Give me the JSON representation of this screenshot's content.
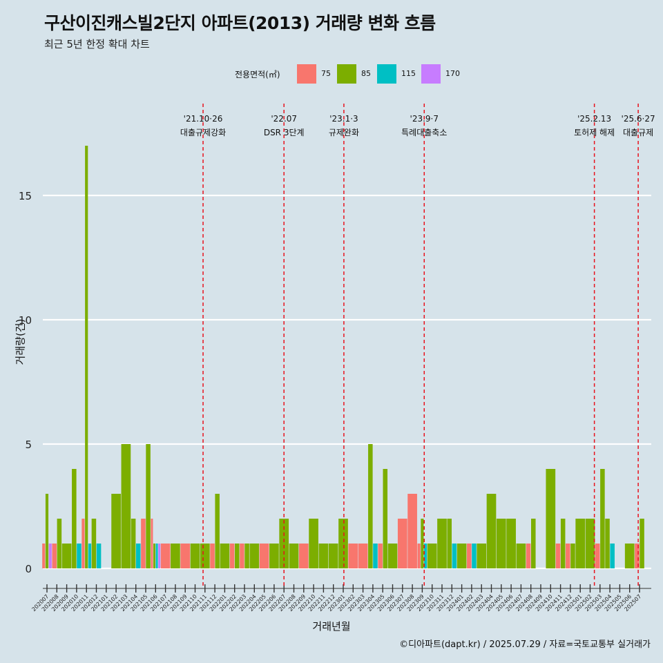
{
  "title": "구산이진캐스빌2단지 아파트(2013) 거래량 변화 흐름",
  "subtitle": "최근 5년 한정 확대 차트",
  "caption": "©디아파트(dapt.kr) / 2025.07.29 / 자료=국토교통부 실거래가",
  "colors": {
    "background": "#d6e3ea",
    "75": "#f8766d",
    "85": "#7cae00",
    "115": "#00bfc4",
    "170": "#c77cff",
    "event_line": "#e8111c"
  },
  "chart_data": {
    "type": "bar",
    "title": "구산이진캐스빌2단지 아파트(2013) 거래량 변화 흐름",
    "xlabel": "거래년월",
    "ylabel": "거래량(건)",
    "ylim": [
      0,
      17
    ],
    "yticks": [
      0,
      5,
      10,
      15
    ],
    "grid": "horizontal",
    "legend_title": "전용면적(㎡)",
    "legend_position": "top",
    "series": [
      {
        "name": "75"
      },
      {
        "name": "85"
      },
      {
        "name": "115"
      },
      {
        "name": "170"
      }
    ],
    "months": [
      "202007",
      "202008",
      "202009",
      "202010",
      "202011",
      "202012",
      "202101",
      "202102",
      "202103",
      "202104",
      "202105",
      "202106",
      "202107",
      "202108",
      "202109",
      "202110",
      "202111",
      "202112",
      "202201",
      "202202",
      "202203",
      "202204",
      "202205",
      "202206",
      "202207",
      "202208",
      "202209",
      "202210",
      "202211",
      "202212",
      "202301",
      "202302",
      "202303",
      "202304",
      "202305",
      "202306",
      "202307",
      "202308",
      "202309",
      "202310",
      "202311",
      "202312",
      "202401",
      "202402",
      "202403",
      "202404",
      "202405",
      "202406",
      "202407",
      "202408",
      "202409",
      "202410",
      "202411",
      "202412",
      "202501",
      "202502",
      "202503",
      "202504",
      "202505",
      "202506",
      "202507"
    ],
    "bars": [
      [
        "202007",
        [
          [
            "85",
            3
          ],
          [
            "170",
            1
          ],
          [
            "75",
            1
          ]
        ]
      ],
      [
        "202008",
        [
          [
            "85",
            2
          ],
          [
            "75",
            1
          ]
        ]
      ],
      [
        "202009",
        [
          [
            "85",
            1
          ]
        ]
      ],
      [
        "202010",
        [
          [
            "85",
            4
          ],
          [
            "115",
            1
          ]
        ]
      ],
      [
        "202011",
        [
          [
            "75",
            2
          ],
          [
            "85",
            17
          ],
          [
            "115",
            1
          ]
        ]
      ],
      [
        "202012",
        [
          [
            "85",
            2
          ],
          [
            "115",
            1
          ]
        ]
      ],
      [
        "202101",
        []
      ],
      [
        "202102",
        [
          [
            "85",
            3
          ]
        ]
      ],
      [
        "202103",
        [
          [
            "85",
            5
          ]
        ]
      ],
      [
        "202104",
        [
          [
            "85",
            2
          ],
          [
            "115",
            1
          ]
        ]
      ],
      [
        "202105",
        [
          [
            "75",
            2
          ],
          [
            "85",
            5
          ]
        ]
      ],
      [
        "202106",
        [
          [
            "75",
            2
          ],
          [
            "85",
            1
          ],
          [
            "115",
            1
          ],
          [
            "170",
            1
          ]
        ]
      ],
      [
        "202107",
        [
          [
            "75",
            1
          ]
        ]
      ],
      [
        "202108",
        [
          [
            "85",
            1
          ]
        ]
      ],
      [
        "202109",
        [
          [
            "75",
            1
          ]
        ]
      ],
      [
        "202110",
        [
          [
            "85",
            1
          ]
        ]
      ],
      [
        "202111",
        [
          [
            "85",
            1
          ]
        ]
      ],
      [
        "202112",
        [
          [
            "75",
            1
          ],
          [
            "85",
            3
          ]
        ]
      ],
      [
        "202201",
        [
          [
            "85",
            1
          ]
        ]
      ],
      [
        "202202",
        [
          [
            "75",
            1
          ],
          [
            "85",
            1
          ]
        ]
      ],
      [
        "202203",
        [
          [
            "75",
            1
          ],
          [
            "85",
            1
          ]
        ]
      ],
      [
        "202204",
        [
          [
            "85",
            1
          ]
        ]
      ],
      [
        "202205",
        [
          [
            "75",
            1
          ]
        ]
      ],
      [
        "202206",
        [
          [
            "85",
            1
          ]
        ]
      ],
      [
        "202207",
        [
          [
            "85",
            2
          ]
        ]
      ],
      [
        "202208",
        [
          [
            "85",
            1
          ]
        ]
      ],
      [
        "202209",
        [
          [
            "75",
            1
          ]
        ]
      ],
      [
        "202210",
        [
          [
            "85",
            2
          ]
        ]
      ],
      [
        "202211",
        [
          [
            "85",
            1
          ]
        ]
      ],
      [
        "202212",
        [
          [
            "85",
            1
          ]
        ]
      ],
      [
        "202301",
        [
          [
            "85",
            2
          ]
        ]
      ],
      [
        "202302",
        [
          [
            "75",
            1
          ]
        ]
      ],
      [
        "202303",
        [
          [
            "75",
            1
          ]
        ]
      ],
      [
        "202304",
        [
          [
            "85",
            5
          ],
          [
            "115",
            1
          ]
        ]
      ],
      [
        "202305",
        [
          [
            "75",
            1
          ],
          [
            "85",
            4
          ]
        ]
      ],
      [
        "202306",
        [
          [
            "85",
            1
          ]
        ]
      ],
      [
        "202307",
        [
          [
            "75",
            2
          ]
        ]
      ],
      [
        "202308",
        [
          [
            "75",
            3
          ]
        ]
      ],
      [
        "202309",
        [
          [
            "75",
            1
          ],
          [
            "85",
            2
          ],
          [
            "115",
            1
          ]
        ]
      ],
      [
        "202310",
        [
          [
            "85",
            1
          ]
        ]
      ],
      [
        "202311",
        [
          [
            "85",
            2
          ]
        ]
      ],
      [
        "202312",
        [
          [
            "85",
            2
          ],
          [
            "115",
            1
          ]
        ]
      ],
      [
        "202401",
        [
          [
            "85",
            1
          ]
        ]
      ],
      [
        "202402",
        [
          [
            "75",
            1
          ],
          [
            "115",
            1
          ]
        ]
      ],
      [
        "202403",
        [
          [
            "85",
            1
          ]
        ]
      ],
      [
        "202404",
        [
          [
            "85",
            3
          ]
        ]
      ],
      [
        "202405",
        [
          [
            "85",
            2
          ]
        ]
      ],
      [
        "202406",
        [
          [
            "85",
            2
          ]
        ]
      ],
      [
        "202407",
        [
          [
            "85",
            1
          ]
        ]
      ],
      [
        "202408",
        [
          [
            "75",
            1
          ],
          [
            "85",
            2
          ]
        ]
      ],
      [
        "202409",
        []
      ],
      [
        "202410",
        [
          [
            "85",
            4
          ]
        ]
      ],
      [
        "202411",
        [
          [
            "75",
            1
          ],
          [
            "85",
            2
          ]
        ]
      ],
      [
        "202412",
        [
          [
            "75",
            1
          ],
          [
            "85",
            1
          ]
        ]
      ],
      [
        "202501",
        [
          [
            "85",
            2
          ]
        ]
      ],
      [
        "202502",
        [
          [
            "85",
            2
          ]
        ]
      ],
      [
        "202503",
        [
          [
            "75",
            1
          ],
          [
            "85",
            4
          ]
        ]
      ],
      [
        "202504",
        [
          [
            "85",
            2
          ],
          [
            "115",
            1
          ]
        ]
      ],
      [
        "202505",
        []
      ],
      [
        "202506",
        [
          [
            "85",
            1
          ]
        ]
      ],
      [
        "202507",
        [
          [
            "75",
            1
          ],
          [
            "85",
            2
          ]
        ]
      ]
    ],
    "events": [
      {
        "date": "2021-10-26",
        "line1": "'21.10·26",
        "line2": "대출규제강화"
      },
      {
        "date": "2022-07",
        "line1": "'22.07",
        "line2": "DSR 3단계"
      },
      {
        "date": "2023-01-03",
        "line1": "'23.1·3",
        "line2": "규제완화"
      },
      {
        "date": "2023-09-07",
        "line1": "'23.9·7",
        "line2": "특례대출축소"
      },
      {
        "date": "2025-02-13",
        "line1": "'25.2.13",
        "line2": "토허제 해제"
      },
      {
        "date": "2025-06-27",
        "line1": "'25.6·27",
        "line2": "대출규제"
      }
    ]
  }
}
